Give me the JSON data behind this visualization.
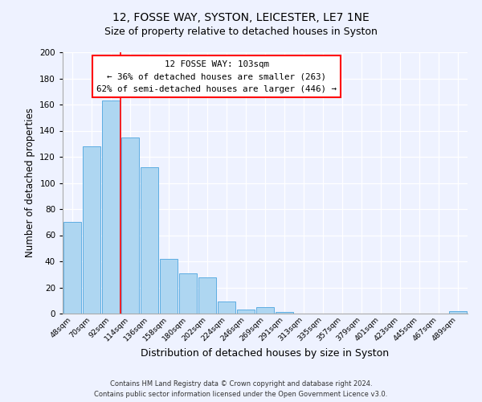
{
  "title": "12, FOSSE WAY, SYSTON, LEICESTER, LE7 1NE",
  "subtitle": "Size of property relative to detached houses in Syston",
  "xlabel": "Distribution of detached houses by size in Syston",
  "ylabel": "Number of detached properties",
  "footnote1": "Contains HM Land Registry data © Crown copyright and database right 2024.",
  "footnote2": "Contains public sector information licensed under the Open Government Licence v3.0.",
  "bar_labels": [
    "48sqm",
    "70sqm",
    "92sqm",
    "114sqm",
    "136sqm",
    "158sqm",
    "180sqm",
    "202sqm",
    "224sqm",
    "246sqm",
    "269sqm",
    "291sqm",
    "313sqm",
    "335sqm",
    "357sqm",
    "379sqm",
    "401sqm",
    "423sqm",
    "445sqm",
    "467sqm",
    "489sqm"
  ],
  "bar_values": [
    70,
    128,
    163,
    135,
    112,
    42,
    31,
    28,
    9,
    3,
    5,
    1,
    0,
    0,
    0,
    0,
    0,
    0,
    0,
    0,
    2
  ],
  "bar_color": "#aed6f1",
  "bar_edge_color": "#5dade2",
  "ylim": [
    0,
    200
  ],
  "yticks": [
    0,
    20,
    40,
    60,
    80,
    100,
    120,
    140,
    160,
    180,
    200
  ],
  "property_label": "12 FOSSE WAY: 103sqm",
  "annotation_line1": "← 36% of detached houses are smaller (263)",
  "annotation_line2": "62% of semi-detached houses are larger (446) →",
  "red_line_x": 2.5,
  "background_color": "#eef2ff",
  "plot_background": "#eef2ff",
  "grid_color": "#ffffff",
  "title_fontsize": 10,
  "subtitle_fontsize": 9,
  "ylabel_fontsize": 8.5,
  "xlabel_fontsize": 9
}
